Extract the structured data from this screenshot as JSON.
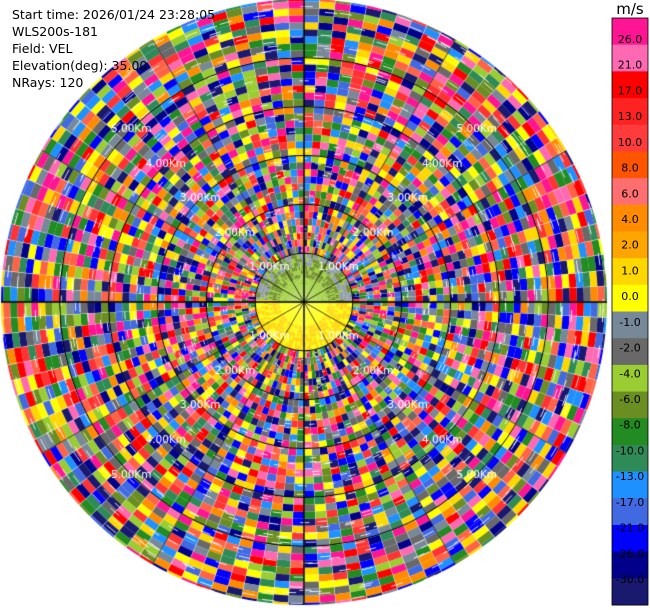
{
  "header": {
    "start_time": "Start time: 2026/01/24 23:28:05",
    "instrument": "WLS200s-181",
    "field": "Field: VEL",
    "elevation": "Elevation(deg): 35.00",
    "nrays": "NRays: 120"
  },
  "chart_data": {
    "type": "ppi",
    "field": "VEL",
    "nrays": 120,
    "range_rings_km": [
      1.0,
      2.0,
      3.0,
      4.0,
      5.0
    ],
    "ring_labels": [
      "1.00Km",
      "2.00Km",
      "3.00Km",
      "4.00Km",
      "5.00Km"
    ],
    "max_range_km": 6.2,
    "colorbar": {
      "unit": "m/s",
      "ticks": [
        "26.0",
        "21.0",
        "17.0",
        "13.0",
        "10.0",
        "8.0",
        "6.0",
        "4.0",
        "2.0",
        "1.0",
        "0.0",
        "-1.0",
        "-2.0",
        "-4.0",
        "-6.0",
        "-8.0",
        "-10.0",
        "-13.0",
        "-17.0",
        "-21.0",
        "-26.0",
        "-30.0"
      ],
      "colors": [
        "#ff1493",
        "#ff69b4",
        "#ff0000",
        "#ff2222",
        "#ff3b3b",
        "#ff5500",
        "#ff6f6f",
        "#ff8c00",
        "#ffa500",
        "#ffd700",
        "#ffff00",
        "#778899",
        "#696969",
        "#9acd32",
        "#6b8e23",
        "#228b22",
        "#2e8b57",
        "#1e90ff",
        "#4169e1",
        "#0000ff",
        "#00008b",
        "#191970"
      ]
    },
    "palette": [
      "#ff1493",
      "#ff69b4",
      "#ff0000",
      "#ff3333",
      "#ff6347",
      "#ff8c00",
      "#ffd700",
      "#ffff00",
      "#778899",
      "#696969",
      "#9acd32",
      "#6b8e23",
      "#228b22",
      "#2e8b57",
      "#1e90ff",
      "#4169e1",
      "#0000ff",
      "#00008b",
      "#191970"
    ],
    "inner_echo": {
      "north_half": "#6b8e23",
      "south_half": "#ffd700",
      "range_km": 1.0
    }
  }
}
